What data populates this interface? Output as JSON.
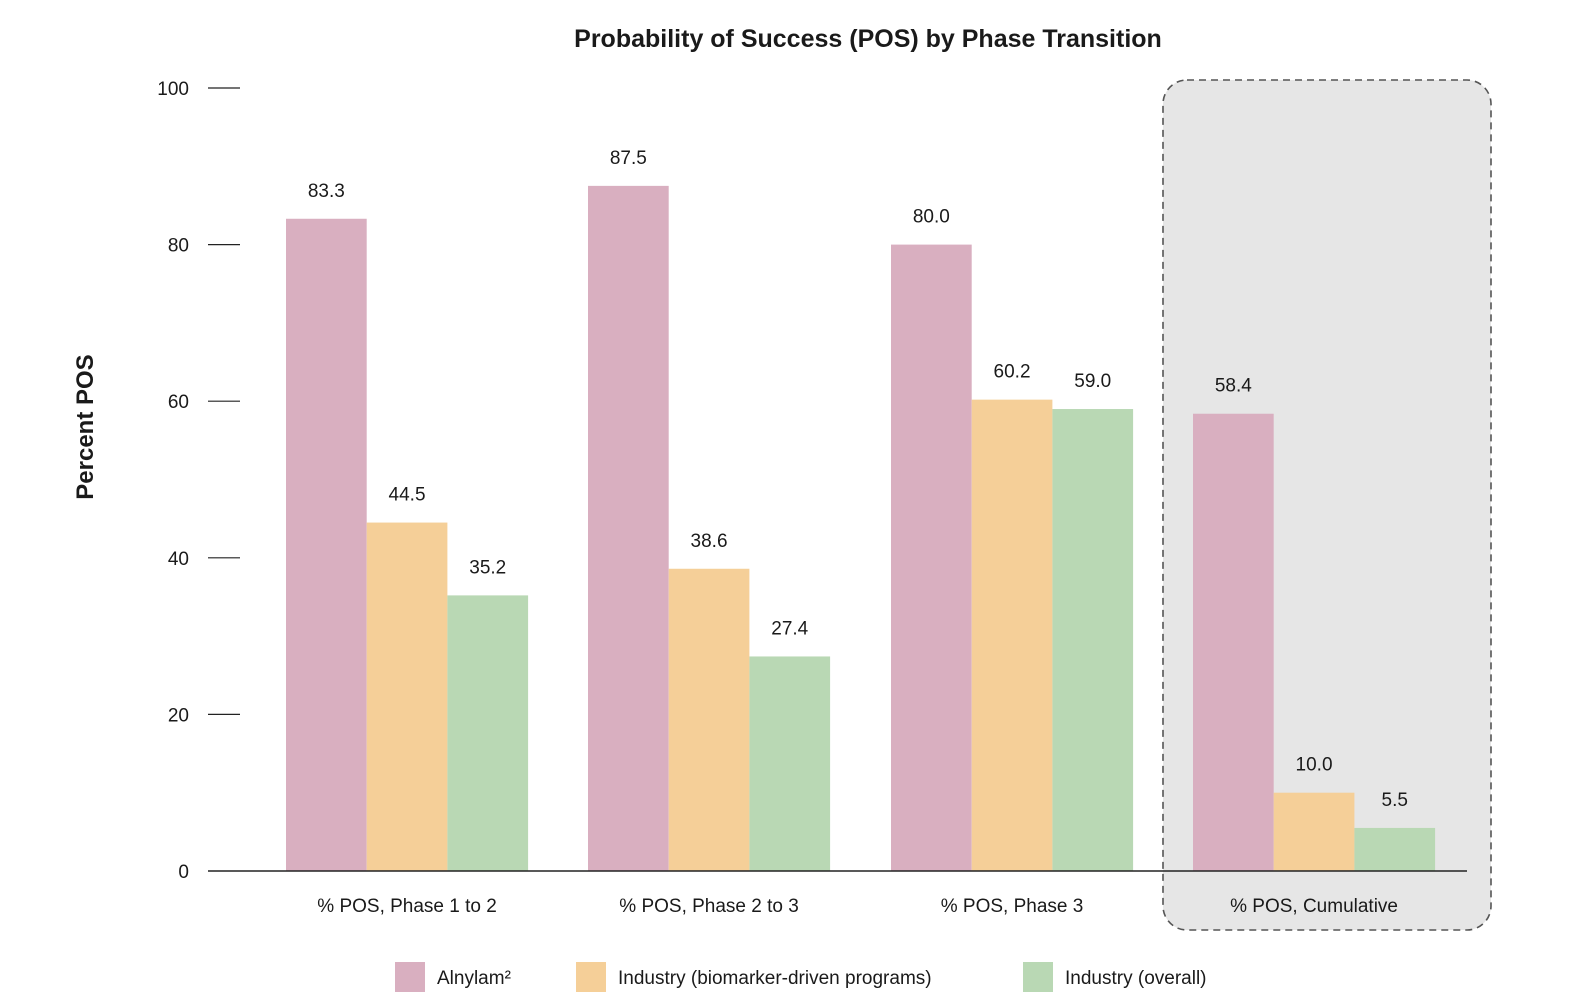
{
  "chart_data": {
    "type": "bar",
    "title": "Probability of Success (POS) by Phase Transition",
    "ylabel": "Percent POS",
    "xlabel": "",
    "ylim": [
      0,
      100
    ],
    "yticks": [
      0,
      20,
      40,
      60,
      80,
      100
    ],
    "grid": false,
    "legend_position": "bottom",
    "categories": [
      "% POS, Phase 1 to 2",
      "% POS, Phase 2 to 3",
      "% POS, Phase 3",
      "% POS, Cumulative"
    ],
    "highlighted_category": "% POS, Cumulative",
    "series": [
      {
        "name": "Alnylam²",
        "color": "#d9afc0",
        "values": [
          83.3,
          87.5,
          80.0,
          58.4
        ],
        "labels": [
          "83.3",
          "87.5",
          "80.0",
          "58.4"
        ]
      },
      {
        "name": "Industry (biomarker-driven programs)",
        "color": "#f5cf98",
        "values": [
          44.5,
          38.6,
          60.2,
          10.0
        ],
        "labels": [
          "44.5",
          "38.6",
          "60.2",
          "10.0"
        ]
      },
      {
        "name": "Industry (overall)",
        "color": "#b9d8b4",
        "values": [
          35.2,
          27.4,
          59.0,
          5.5
        ],
        "labels": [
          "35.2",
          "27.4",
          "59.0",
          "5.5"
        ]
      }
    ]
  },
  "colors": {
    "highlight_fill": "#e6e6e6",
    "highlight_border": "#555555",
    "axis": "#222222",
    "text": "#1a1a1a"
  }
}
